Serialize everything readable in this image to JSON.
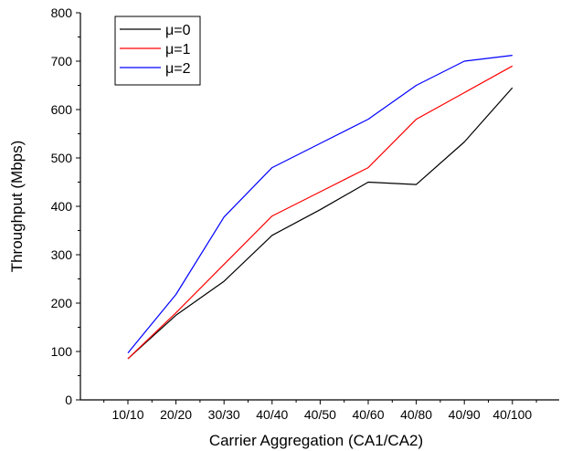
{
  "chart_data": {
    "type": "line",
    "xlabel": "Carrier Aggregation (CA1/CA2)",
    "ylabel": "Throughput (Mbps)",
    "categories": [
      "10/10",
      "20/20",
      "30/30",
      "40/40",
      "40/50",
      "40/60",
      "40/80",
      "40/90",
      "40/100"
    ],
    "ylim": [
      0,
      800
    ],
    "yticks": [
      0,
      100,
      200,
      300,
      400,
      500,
      600,
      700,
      800
    ],
    "grid": false,
    "legend_position": "top-left",
    "series": [
      {
        "name": "μ=0",
        "color": "#000000",
        "values": [
          85,
          175,
          245,
          340,
          393,
          450,
          445,
          533,
          645
        ]
      },
      {
        "name": "μ=1",
        "color": "#ff0000",
        "values": [
          85,
          180,
          280,
          380,
          430,
          480,
          580,
          635,
          690
        ]
      },
      {
        "name": "μ=2",
        "color": "#0000ff",
        "values": [
          97,
          218,
          378,
          480,
          530,
          580,
          650,
          700,
          712
        ]
      }
    ]
  }
}
